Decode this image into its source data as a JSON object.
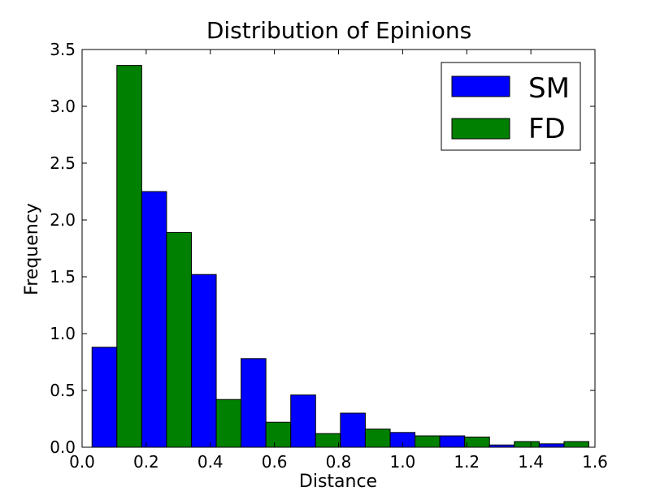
{
  "chart_data": {
    "type": "bar",
    "title": "Distribution of Epinions",
    "xlabel": "Distance",
    "ylabel": "Frequency",
    "xlim": [
      0.0,
      1.6
    ],
    "ylim": [
      0.0,
      3.5
    ],
    "x_ticks": [
      "0.0",
      "0.2",
      "0.4",
      "0.6",
      "0.8",
      "1.0",
      "1.2",
      "1.4",
      "1.6"
    ],
    "y_ticks": [
      "0.0",
      "0.5",
      "1.0",
      "1.5",
      "2.0",
      "2.5",
      "3.0",
      "3.5"
    ],
    "x_tick_values": [
      0.0,
      0.2,
      0.4,
      0.6,
      0.8,
      1.0,
      1.2,
      1.4,
      1.6
    ],
    "y_tick_values": [
      0.0,
      0.5,
      1.0,
      1.5,
      2.0,
      2.5,
      3.0,
      3.5
    ],
    "bin_edges": [
      0.031,
      0.186,
      0.341,
      0.496,
      0.651,
      0.806,
      0.961,
      1.116,
      1.271,
      1.426,
      1.581
    ],
    "series": [
      {
        "name": "SM",
        "color": "#0000ff",
        "values": [
          0.88,
          2.25,
          1.52,
          0.78,
          0.46,
          0.3,
          0.13,
          0.1,
          0.02,
          0.03
        ]
      },
      {
        "name": "FD",
        "color": "#008000",
        "values": [
          3.36,
          1.89,
          0.42,
          0.22,
          0.12,
          0.16,
          0.1,
          0.09,
          0.05,
          0.05
        ]
      }
    ],
    "grid": false,
    "legend_position": "top-right"
  }
}
